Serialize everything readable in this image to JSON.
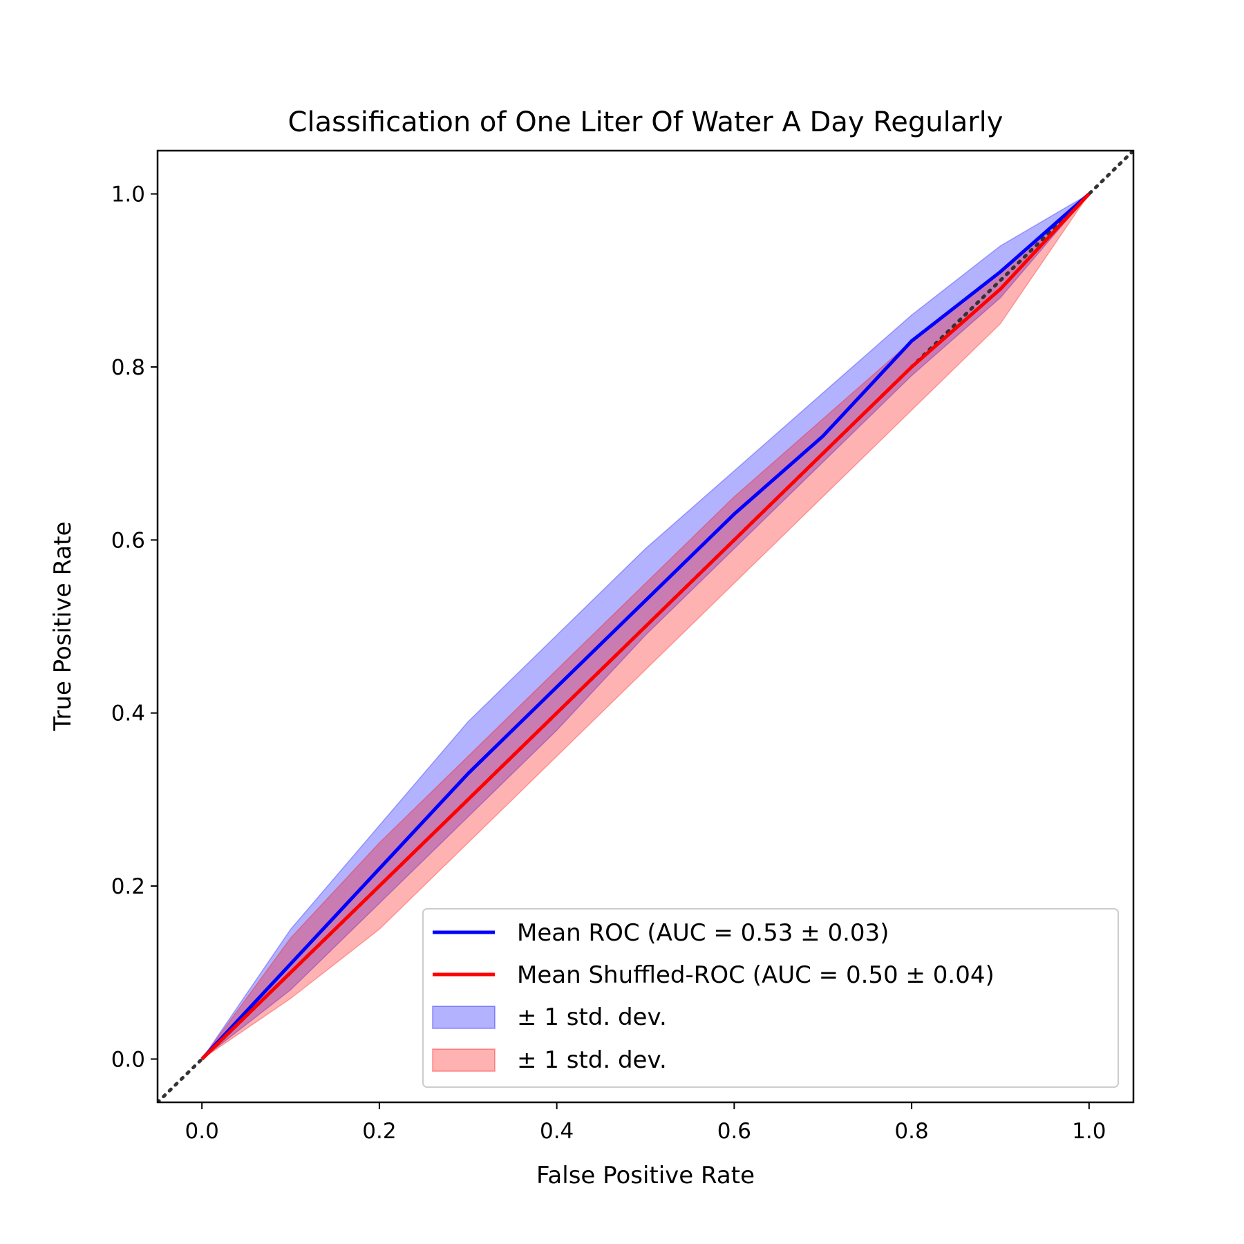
{
  "chart_data": {
    "type": "line",
    "title": "Classification of One Liter Of Water A Day Regularly",
    "xlabel": "False Positive Rate",
    "ylabel": "True Positive Rate",
    "xlim": [
      -0.05,
      1.05
    ],
    "ylim": [
      -0.05,
      1.05
    ],
    "xticks": [
      "0.0",
      "0.2",
      "0.4",
      "0.6",
      "0.8",
      "1.0"
    ],
    "yticks": [
      "0.0",
      "0.2",
      "0.4",
      "0.6",
      "0.8",
      "1.0"
    ],
    "grid": false,
    "legend_position": "lower-right",
    "x": [
      0.0,
      0.1,
      0.2,
      0.3,
      0.4,
      0.5,
      0.6,
      0.7,
      0.8,
      0.9,
      1.0
    ],
    "series": [
      {
        "name": "Mean ROC (AUC = 0.53 ± 0.03)",
        "color": "#0000ff",
        "values": [
          0.0,
          0.11,
          0.22,
          0.33,
          0.43,
          0.53,
          0.63,
          0.72,
          0.83,
          0.91,
          1.0
        ]
      },
      {
        "name": "Mean Shuffled-ROC (AUC = 0.50 ± 0.04)",
        "color": "#ff0000",
        "values": [
          0.0,
          0.1,
          0.2,
          0.3,
          0.4,
          0.5,
          0.6,
          0.7,
          0.8,
          0.89,
          1.0
        ]
      },
      {
        "name": "± 1 std. dev.",
        "type": "band",
        "of": "Mean ROC",
        "color": "#0000ff",
        "alpha": 0.3,
        "lower": [
          0.0,
          0.08,
          0.18,
          0.28,
          0.38,
          0.49,
          0.59,
          0.69,
          0.79,
          0.88,
          1.0
        ],
        "upper": [
          0.0,
          0.15,
          0.27,
          0.39,
          0.49,
          0.59,
          0.68,
          0.77,
          0.86,
          0.94,
          1.0
        ]
      },
      {
        "name": "± 1 std. dev.",
        "type": "band",
        "of": "Mean Shuffled-ROC",
        "color": "#ff0000",
        "alpha": 0.3,
        "lower": [
          0.0,
          0.07,
          0.15,
          0.25,
          0.35,
          0.45,
          0.55,
          0.65,
          0.75,
          0.85,
          1.0
        ],
        "upper": [
          0.0,
          0.14,
          0.25,
          0.35,
          0.45,
          0.55,
          0.65,
          0.74,
          0.83,
          0.91,
          1.0
        ]
      },
      {
        "type": "reference-line",
        "style": "dotted",
        "color": "#333333",
        "x": [
          -0.05,
          1.05
        ],
        "values": [
          -0.05,
          1.05
        ]
      }
    ]
  }
}
